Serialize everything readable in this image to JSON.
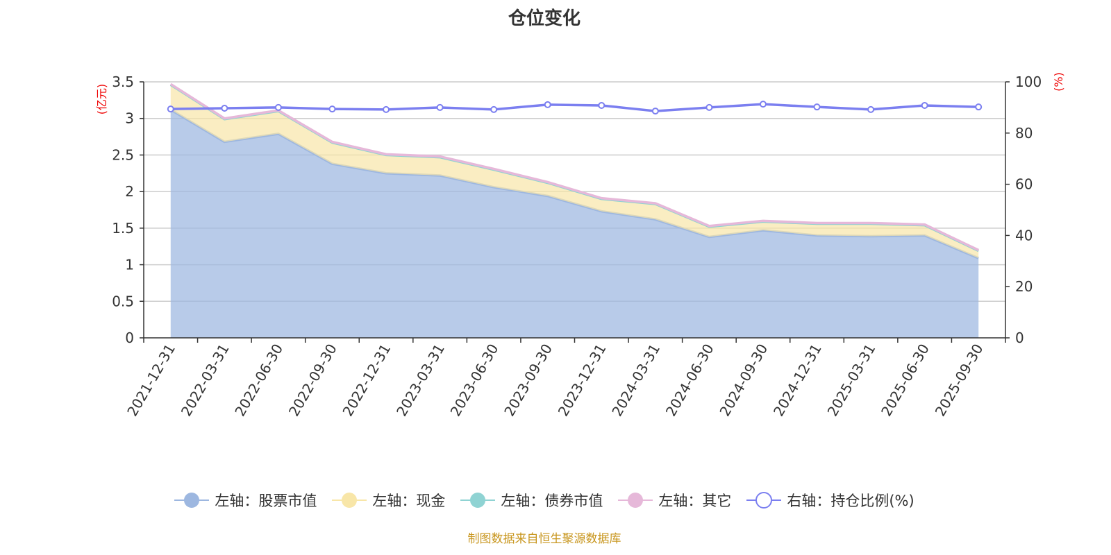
{
  "chart_data": {
    "type": "area",
    "title": "仓位变化",
    "left_axis_label": "(亿元)",
    "right_axis_label": "(%)",
    "left_ylim": [
      0,
      3.5
    ],
    "left_ticks": [
      "0",
      "0.5",
      "1",
      "1.5",
      "2",
      "2.5",
      "3",
      "3.5"
    ],
    "right_ylim": [
      0,
      100
    ],
    "right_ticks": [
      "0",
      "20",
      "40",
      "60",
      "80",
      "100"
    ],
    "categories": [
      "2021-12-31",
      "2022-03-31",
      "2022-06-30",
      "2022-09-30",
      "2022-12-31",
      "2023-03-31",
      "2023-06-30",
      "2023-09-30",
      "2023-12-31",
      "2024-03-31",
      "2024-06-30",
      "2024-09-30",
      "2024-12-31",
      "2025-03-31",
      "2025-06-30",
      "2025-09-30"
    ],
    "series": [
      {
        "name": "左轴：股票市值",
        "axis": "left",
        "stack": true,
        "color": "#9db7e0",
        "values": [
          3.12,
          2.68,
          2.79,
          2.38,
          2.25,
          2.22,
          2.06,
          1.94,
          1.73,
          1.62,
          1.38,
          1.47,
          1.4,
          1.39,
          1.4,
          1.09
        ]
      },
      {
        "name": "左轴：现金",
        "axis": "left",
        "stack": true,
        "color": "#f8e6a8",
        "values": [
          0.34,
          0.31,
          0.31,
          0.29,
          0.25,
          0.25,
          0.24,
          0.18,
          0.17,
          0.21,
          0.14,
          0.12,
          0.16,
          0.17,
          0.14,
          0.1
        ]
      },
      {
        "name": "左轴：债券市值",
        "axis": "left",
        "stack": true,
        "color": "#8fd3d3",
        "values": [
          0,
          0,
          0,
          0,
          0,
          0,
          0,
          0,
          0,
          0,
          0,
          0,
          0,
          0,
          0,
          0
        ]
      },
      {
        "name": "左轴：其它",
        "axis": "left",
        "stack": true,
        "color": "#e6b8d9",
        "values": [
          0.01,
          0.01,
          0.01,
          0.01,
          0.01,
          0.01,
          0.01,
          0.01,
          0.01,
          0.01,
          0.01,
          0.01,
          0.01,
          0.01,
          0.01,
          0.01
        ]
      },
      {
        "name": "右轴：持仓比例(%)",
        "axis": "right",
        "stack": false,
        "color": "#7b7ff0",
        "values": [
          89.4,
          89.7,
          90.0,
          89.4,
          89.2,
          90.0,
          89.2,
          91.1,
          90.8,
          88.6,
          90.0,
          91.3,
          90.2,
          89.2,
          90.8,
          90.2
        ]
      }
    ]
  },
  "footer": "制图数据来自恒生聚源数据库"
}
